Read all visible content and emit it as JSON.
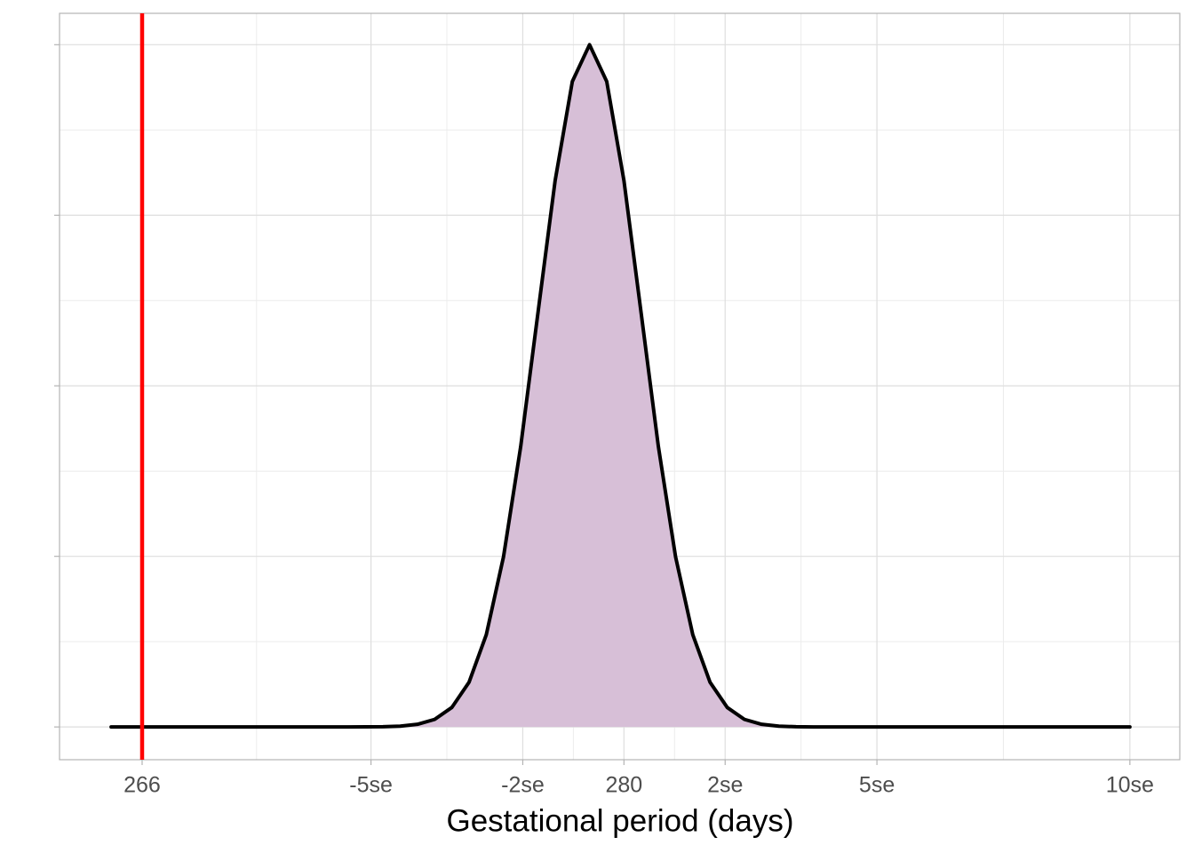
{
  "chart_data": {
    "type": "area",
    "x_label": "Gestational period (days)",
    "x": [
      265.1,
      270,
      272,
      273,
      273.5,
      274,
      274.5,
      275,
      275.5,
      276,
      276.5,
      277,
      277.5,
      278,
      278.5,
      279,
      279.5,
      280,
      280.5,
      281,
      281.5,
      282,
      282.5,
      283,
      283.5,
      284,
      284.5,
      285,
      285.5,
      286,
      286.5,
      287,
      288,
      290,
      294.7
    ],
    "series": [
      {
        "color": "#000000",
        "fill": "#d7bfd7",
        "values": [
          0,
          0,
          0,
          0.0003,
          0.0012,
          0.0039,
          0.0111,
          0.0286,
          0.0657,
          0.1353,
          0.2494,
          0.4111,
          0.6065,
          0.8007,
          0.946,
          1,
          0.946,
          0.8007,
          0.6065,
          0.4111,
          0.2494,
          0.1353,
          0.0657,
          0.0286,
          0.0111,
          0.0039,
          0.0012,
          0.0003,
          0,
          0,
          0,
          0,
          0,
          0,
          0
        ]
      }
    ],
    "reference_line": {
      "x": 266,
      "color": "#ff0000"
    },
    "xlim": [
      263.6,
      296.15
    ],
    "xticks": [
      266,
      {
        "value": 272.65,
        "label": "-5se"
      },
      {
        "value": 277.06,
        "label": "-2se"
      },
      280,
      {
        "value": 282.94,
        "label": "2se"
      },
      {
        "value": 287.35,
        "label": "5se"
      },
      {
        "value": 294.7,
        "label": "10se"
      }
    ],
    "ylim": [
      -0.048,
      1.046
    ],
    "yticks": [
      0,
      0.25,
      0.5,
      0.75,
      1
    ],
    "grid": true
  }
}
